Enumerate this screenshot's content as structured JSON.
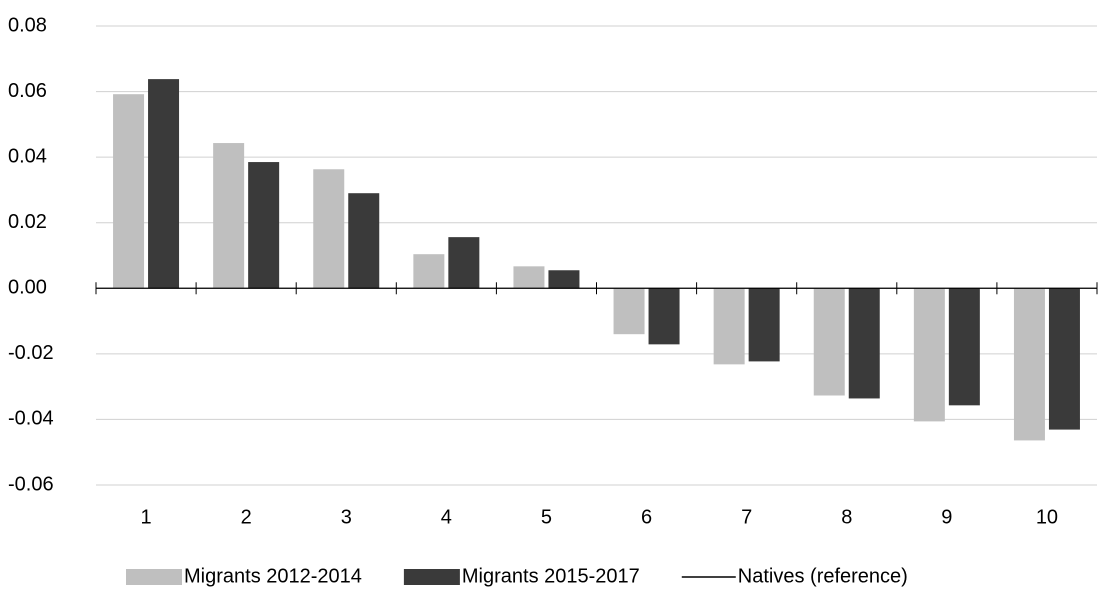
{
  "chart_data": {
    "type": "bar",
    "categories": [
      "1",
      "2",
      "3",
      "4",
      "5",
      "6",
      "7",
      "8",
      "9",
      "10"
    ],
    "series": [
      {
        "name": "Migrants 2012-2014",
        "color": "#bfbfbf",
        "values": [
          0.0592,
          0.0443,
          0.0363,
          0.0104,
          0.0067,
          -0.014,
          -0.0232,
          -0.0327,
          -0.0406,
          -0.0464
        ]
      },
      {
        "name": "Migrants 2015-2017",
        "color": "#3a3a3a",
        "values": [
          0.0638,
          0.0385,
          0.029,
          0.0156,
          0.0055,
          -0.0171,
          -0.0223,
          -0.0336,
          -0.0357,
          -0.0431
        ]
      }
    ],
    "reference_line": {
      "name": "Natives (reference)",
      "value": 0,
      "color": "#000000"
    },
    "ylim": [
      -0.06,
      0.08
    ],
    "yticks": [
      -0.06,
      -0.04,
      -0.02,
      {
        "value": 0,
        "label": "0.00"
      },
      0.02,
      0.04,
      0.06,
      0.08
    ],
    "grid": true,
    "legend": "bottom"
  }
}
